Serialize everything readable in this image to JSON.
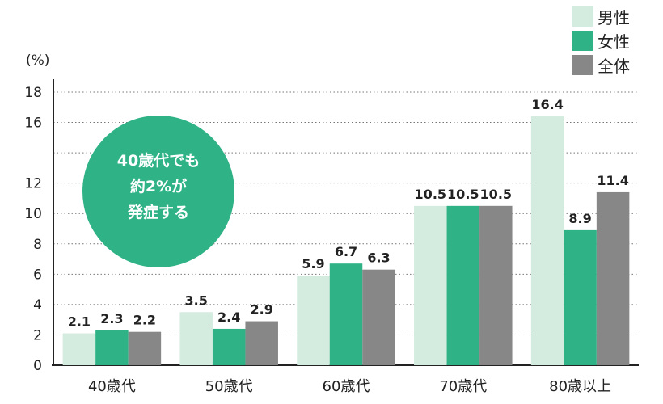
{
  "chart_data": {
    "type": "bar",
    "unit_label": "(%)",
    "categories": [
      "40歳代",
      "50歳代",
      "60歳代",
      "70歳代",
      "80歳以上"
    ],
    "series": [
      {
        "name": "男性",
        "color": "#d4ebdf",
        "values": [
          2.1,
          3.5,
          5.9,
          10.5,
          16.4
        ]
      },
      {
        "name": "女性",
        "color": "#2fb386",
        "values": [
          2.3,
          2.4,
          6.7,
          10.5,
          8.9
        ]
      },
      {
        "name": "全体",
        "color": "#878787",
        "values": [
          2.2,
          2.9,
          6.3,
          10.5,
          11.4
        ]
      }
    ],
    "ylim": [
      0,
      18
    ],
    "yticks": [
      0,
      2,
      4,
      6,
      8,
      10,
      12,
      16,
      18
    ],
    "grid": "dotted",
    "legend_position": "top-right",
    "annotation": {
      "lines": [
        "40歳代でも",
        "約2%が",
        "発症する"
      ],
      "color": "#2fb386"
    }
  }
}
